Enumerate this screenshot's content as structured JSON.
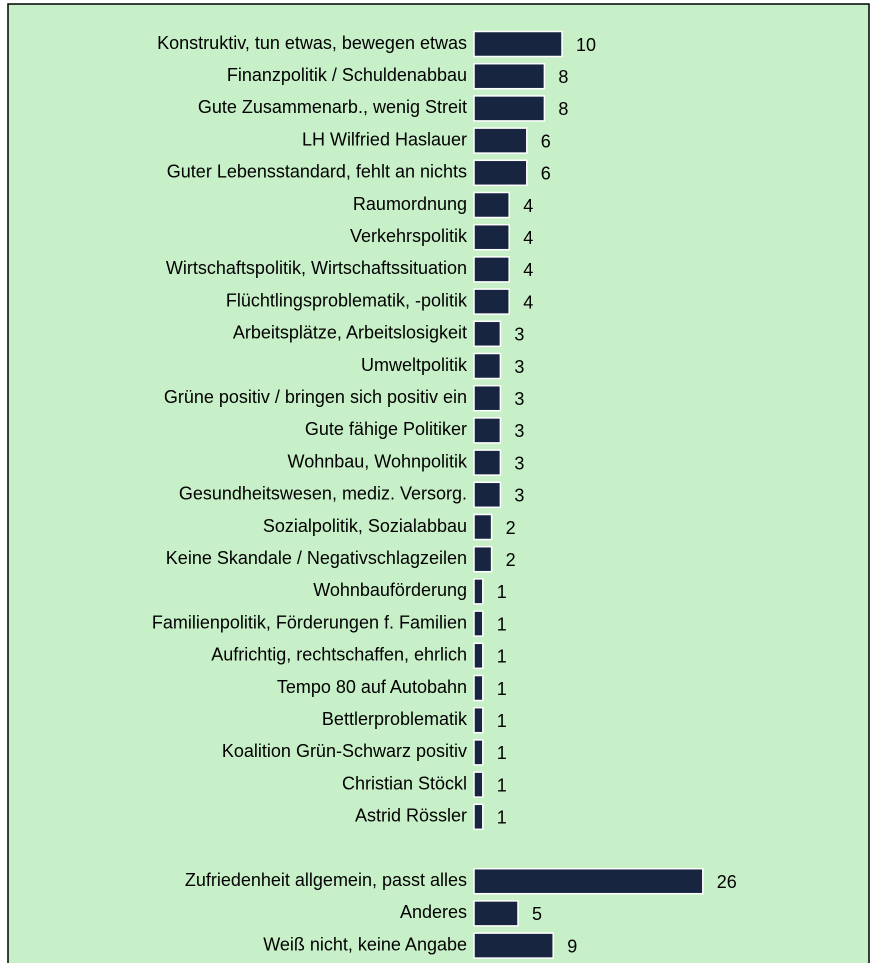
{
  "chart_data": {
    "type": "barh",
    "categories": [
      "Konstruktiv, tun etwas, bewegen etwas",
      "Finanzpolitik  / Schuldenabbau",
      "Gute Zusammenarb., wenig Streit",
      "LH Wilfried Haslauer",
      "Guter Lebensstandard, fehlt an nichts",
      "Raumordnung",
      "Verkehrspolitik",
      "Wirtschaftspolitik, Wirtschaftssituation",
      "Flüchtlingsproblematik, -politik",
      "Arbeitsplätze, Arbeitslosigkeit",
      "Umweltpolitik",
      "Grüne positiv / bringen sich positiv ein",
      "Gute fähige Politiker",
      "Wohnbau, Wohnpolitik",
      "Gesundheitswesen, mediz. Versorg.",
      "Sozialpolitik, Sozialabbau",
      "Keine Skandale / Negativschlagzeilen",
      "Wohnbauförderung",
      "Familienpolitik, Förderungen f. Familien",
      "Aufrichtig, rechtschaffen, ehrlich",
      "Tempo 80 auf Autobahn",
      "Bettlerproblematik",
      "Koalition Grün-Schwarz positiv",
      "Christian Stöckl",
      "Astrid Rössler",
      null,
      "Zufriedenheit allgemein, passt alles",
      "Anderes",
      "Weiß nicht, keine Angabe"
    ],
    "values": [
      10,
      8,
      8,
      6,
      6,
      4,
      4,
      4,
      4,
      3,
      3,
      3,
      3,
      3,
      3,
      2,
      2,
      1,
      1,
      1,
      1,
      1,
      1,
      1,
      1,
      null,
      26,
      5,
      9
    ],
    "color": "#172540",
    "background": "#c8f0c8"
  }
}
